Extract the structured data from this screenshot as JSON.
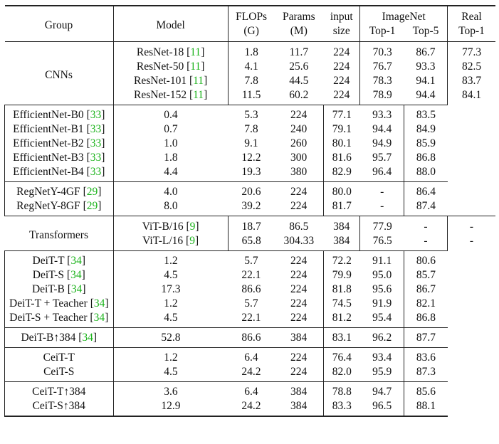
{
  "headers": {
    "group": "Group",
    "model": "Model",
    "flops": [
      "FLOPs",
      "(G)"
    ],
    "params": [
      "Params",
      "(M)"
    ],
    "input": [
      "input",
      "size"
    ],
    "imagenet": "ImageNet",
    "top1": "Top-1",
    "top5": "Top-5",
    "real": [
      "Real",
      "Top-1"
    ]
  },
  "groups": [
    {
      "name": "CNNs",
      "blocks": [
        [
          {
            "model": "ResNet-18",
            "ref": "11",
            "flops": "1.8",
            "params": "11.7",
            "input": "224",
            "top1": "70.3",
            "top5": "86.7",
            "real": "77.3"
          },
          {
            "model": "ResNet-50",
            "ref": "11",
            "flops": "4.1",
            "params": "25.6",
            "input": "224",
            "top1": "76.7",
            "top5": "93.3",
            "real": "82.5"
          },
          {
            "model": "ResNet-101",
            "ref": "11",
            "flops": "7.8",
            "params": "44.5",
            "input": "224",
            "top1": "78.3",
            "top5": "94.1",
            "real": "83.7"
          },
          {
            "model": "ResNet-152",
            "ref": "11",
            "flops": "11.5",
            "params": "60.2",
            "input": "224",
            "top1": "78.9",
            "top5": "94.4",
            "real": "84.1"
          }
        ],
        [
          {
            "model": "EfficientNet-B0",
            "ref": "33",
            "flops": "0.4",
            "params": "5.3",
            "input": "224",
            "top1": "77.1",
            "top5": "93.3",
            "real": "83.5"
          },
          {
            "model": "EfficientNet-B1",
            "ref": "33",
            "flops": "0.7",
            "params": "7.8",
            "input": "240",
            "top1": "79.1",
            "top5": "94.4",
            "real": "84.9"
          },
          {
            "model": "EfficientNet-B2",
            "ref": "33",
            "flops": "1.0",
            "params": "9.1",
            "input": "260",
            "top1": "80.1",
            "top5": "94.9",
            "real": "85.9"
          },
          {
            "model": "EfficientNet-B3",
            "ref": "33",
            "flops": "1.8",
            "params": "12.2",
            "input": "300",
            "top1": "81.6",
            "top5": "95.7",
            "real": "86.8"
          },
          {
            "model": "EfficientNet-B4",
            "ref": "33",
            "flops": "4.4",
            "params": "19.3",
            "input": "380",
            "top1": "82.9",
            "top5": "96.4",
            "real": "88.0"
          }
        ],
        [
          {
            "model": "RegNetY-4GF",
            "ref": "29",
            "flops": "4.0",
            "params": "20.6",
            "input": "224",
            "top1": "80.0",
            "top5": "-",
            "real": "86.4"
          },
          {
            "model": "RegNetY-8GF",
            "ref": "29",
            "flops": "8.0",
            "params": "39.2",
            "input": "224",
            "top1": "81.7",
            "top5": "-",
            "real": "87.4"
          }
        ]
      ]
    },
    {
      "name": "Transformers",
      "blocks": [
        [
          {
            "model": "ViT-B/16",
            "ref": "9",
            "flops": "18.7",
            "params": "86.5",
            "input": "384",
            "top1": "77.9",
            "top5": "-",
            "real": "-"
          },
          {
            "model": "ViT-L/16",
            "ref": "9",
            "flops": "65.8",
            "params": "304.33",
            "input": "384",
            "top1": "76.5",
            "top5": "-",
            "real": "-"
          }
        ],
        [
          {
            "model": "DeiT-T",
            "ref": "34",
            "flops": "1.2",
            "params": "5.7",
            "input": "224",
            "top1": "72.2",
            "top5": "91.1",
            "real": "80.6"
          },
          {
            "model": "DeiT-S",
            "ref": "34",
            "flops": "4.5",
            "params": "22.1",
            "input": "224",
            "top1": "79.9",
            "top5": "95.0",
            "real": "85.7"
          },
          {
            "model": "DeiT-B",
            "ref": "34",
            "flops": "17.3",
            "params": "86.6",
            "input": "224",
            "top1": "81.8",
            "top5": "95.6",
            "real": "86.7"
          },
          {
            "model": "DeiT-T + Teacher",
            "ref": "34",
            "flops": "1.2",
            "params": "5.7",
            "input": "224",
            "top1": "74.5",
            "top5": "91.9",
            "real": "82.1"
          },
          {
            "model": "DeiT-S + Teacher",
            "ref": "34",
            "flops": "4.5",
            "params": "22.1",
            "input": "224",
            "top1": "81.2",
            "top5": "95.4",
            "real": "86.8"
          }
        ],
        [
          {
            "model": "DeiT-B↑384",
            "ref": "34",
            "flops": "52.8",
            "params": "86.6",
            "input": "384",
            "top1": "83.1",
            "top5": "96.2",
            "real": "87.7"
          }
        ],
        [
          {
            "model": "CeiT-T",
            "ref": "",
            "flops": "1.2",
            "params": "6.4",
            "input": "224",
            "top1": "76.4",
            "top1_bold": true,
            "top5": "93.4",
            "real": "83.6"
          },
          {
            "model": "CeiT-S",
            "ref": "",
            "flops": "4.5",
            "params": "24.2",
            "input": "224",
            "top1": "82.0",
            "top1_bold": true,
            "top5": "95.9",
            "real": "87.3"
          }
        ],
        [
          {
            "model": "CeiT-T↑384",
            "ref": "",
            "flops": "3.6",
            "params": "6.4",
            "input": "384",
            "top1": "78.8",
            "top1_bold": true,
            "top5": "94.7",
            "real": "85.6"
          },
          {
            "model": "CeiT-S↑384",
            "ref": "",
            "flops": "12.9",
            "params": "24.2",
            "input": "384",
            "top1": "83.3",
            "top1_bold": true,
            "top5": "96.5",
            "real": "88.1"
          }
        ]
      ]
    }
  ]
}
